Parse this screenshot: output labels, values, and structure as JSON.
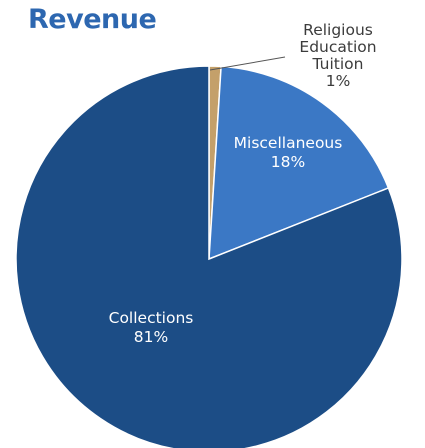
{
  "chart_data": {
    "type": "pie",
    "title": "Revenue",
    "slices": [
      {
        "label": "Religious Education Tuition",
        "value": 1,
        "display": "1%",
        "color": "#c4a06a",
        "label_color": "#3c3c3c",
        "label_lines": [
          "Religious",
          "Education",
          "Tuition"
        ]
      },
      {
        "label": "Miscellaneous",
        "value": 18,
        "display": "18%",
        "color": "#3b78c5",
        "label_color": "#ffffff",
        "label_lines": [
          "Miscellaneous"
        ]
      },
      {
        "label": "Collections",
        "value": 81,
        "display": "81%",
        "color": "#1c4d86",
        "label_color": "#ffffff",
        "label_lines": [
          "Collections"
        ]
      }
    ]
  }
}
